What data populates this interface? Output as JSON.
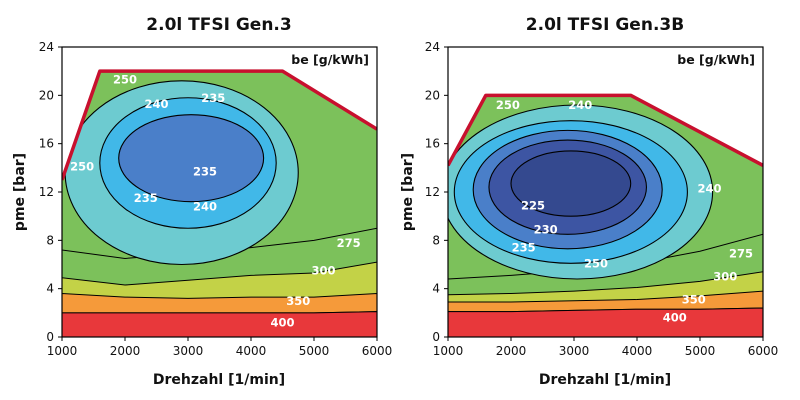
{
  "colors": {
    "band_400_plus": "#e8383b",
    "band_350_400": "#f26a3c",
    "band_300_350": "#f59a3a",
    "band_275_300": "#c3d247",
    "band_250_275": "#7cc15b",
    "band_240_250": "#6dcbd0",
    "band_235_240": "#41b8e8",
    "band_230_235": "#4a7fc9",
    "band_below_230": "#3d55a3",
    "full_load_line": "#c8102e",
    "contour_line": "#000000"
  },
  "chart_data": [
    {
      "type": "contour",
      "title": "2.0l TFSI Gen.3",
      "xlabel": "Drehzahl [1/min]",
      "ylabel": "pme [bar]",
      "unit_label": "be [g/kWh]",
      "xlim": [
        1000,
        6000
      ],
      "ylim": [
        0,
        24
      ],
      "xticks": [
        1000,
        2000,
        3000,
        4000,
        5000,
        6000
      ],
      "yticks": [
        0,
        4,
        8,
        12,
        16,
        20,
        24
      ],
      "grid": true,
      "full_load_curve": [
        [
          1000,
          13
        ],
        [
          1600,
          22
        ],
        [
          4500,
          22
        ],
        [
          6000,
          17.2
        ]
      ],
      "bands": [
        {
          "level": 400,
          "boundary": [
            [
              1000,
              2.0
            ],
            [
              2000,
              2.0
            ],
            [
              3000,
              2.0
            ],
            [
              4000,
              2.0
            ],
            [
              5000,
              2.0
            ],
            [
              6000,
              2.1
            ]
          ]
        },
        {
          "level": 350,
          "boundary": [
            [
              1000,
              3.6
            ],
            [
              2000,
              3.3
            ],
            [
              3000,
              3.2
            ],
            [
              4000,
              3.3
            ],
            [
              5000,
              3.3
            ],
            [
              6000,
              3.6
            ]
          ]
        },
        {
          "level": 300,
          "boundary": [
            [
              1000,
              4.9
            ],
            [
              2000,
              4.3
            ],
            [
              3000,
              4.7
            ],
            [
              4000,
              5.1
            ],
            [
              5000,
              5.3
            ],
            [
              6000,
              6.2
            ]
          ]
        },
        {
          "level": 275,
          "boundary": [
            [
              1000,
              7.2
            ],
            [
              2000,
              6.5
            ],
            [
              3000,
              6.9
            ],
            [
              4000,
              7.4
            ],
            [
              5000,
              8.0
            ],
            [
              6000,
              9.0
            ]
          ]
        }
      ],
      "islands": [
        {
          "level": 250,
          "center": [
            2900,
            13.6
          ],
          "rx": 1850,
          "ry": 7.6
        },
        {
          "level": 240,
          "center": [
            3000,
            14.4
          ],
          "rx": 1400,
          "ry": 5.4
        },
        {
          "level": 235,
          "center": [
            3050,
            14.8
          ],
          "rx": 1150,
          "ry": 3.6
        }
      ],
      "labels": [
        {
          "text": "250",
          "x": 2000,
          "y": 21.3
        },
        {
          "text": "240",
          "x": 2500,
          "y": 19.3
        },
        {
          "text": "235",
          "x": 3400,
          "y": 19.8
        },
        {
          "text": "250",
          "x": 1320,
          "y": 14.1
        },
        {
          "text": "235",
          "x": 3270,
          "y": 13.7
        },
        {
          "text": "235",
          "x": 2330,
          "y": 11.5
        },
        {
          "text": "240",
          "x": 3270,
          "y": 10.8
        },
        {
          "text": "275",
          "x": 5550,
          "y": 7.8
        },
        {
          "text": "300",
          "x": 5150,
          "y": 5.5
        },
        {
          "text": "350",
          "x": 4750,
          "y": 3.0
        },
        {
          "text": "400",
          "x": 4500,
          "y": 1.2
        }
      ]
    },
    {
      "type": "contour",
      "title": "2.0l TFSI Gen.3B",
      "xlabel": "Drehzahl [1/min]",
      "ylabel": "pme [bar]",
      "unit_label": "be [g/kWh]",
      "xlim": [
        1000,
        6000
      ],
      "ylim": [
        0,
        24
      ],
      "xticks": [
        1000,
        2000,
        3000,
        4000,
        5000,
        6000
      ],
      "yticks": [
        0,
        4,
        8,
        12,
        16,
        20,
        24
      ],
      "grid": true,
      "full_load_curve": [
        [
          1000,
          14.2
        ],
        [
          1600,
          20
        ],
        [
          3900,
          20
        ],
        [
          6000,
          14.2
        ]
      ],
      "bands": [
        {
          "level": 400,
          "boundary": [
            [
              1000,
              2.1
            ],
            [
              2000,
              2.1
            ],
            [
              3000,
              2.2
            ],
            [
              4000,
              2.3
            ],
            [
              5000,
              2.3
            ],
            [
              6000,
              2.4
            ]
          ]
        },
        {
          "level": 350,
          "boundary": [
            [
              1000,
              2.9
            ],
            [
              2000,
              2.9
            ],
            [
              3000,
              3.0
            ],
            [
              4000,
              3.1
            ],
            [
              5000,
              3.4
            ],
            [
              6000,
              3.8
            ]
          ]
        },
        {
          "level": 300,
          "boundary": [
            [
              1000,
              3.5
            ],
            [
              2000,
              3.6
            ],
            [
              3000,
              3.8
            ],
            [
              4000,
              4.1
            ],
            [
              5000,
              4.6
            ],
            [
              6000,
              5.4
            ]
          ]
        },
        {
          "level": 275,
          "boundary": [
            [
              1000,
              4.8
            ],
            [
              2000,
              5.1
            ],
            [
              3000,
              5.5
            ],
            [
              4000,
              6.1
            ],
            [
              5000,
              7.1
            ],
            [
              6000,
              8.5
            ]
          ]
        }
      ],
      "islands": [
        {
          "level": 250,
          "center": [
            3050,
            12.0
          ],
          "rx": 2150,
          "ry": 7.2
        },
        {
          "level": 240,
          "center": [
            2950,
            12.0
          ],
          "rx": 1850,
          "ry": 5.9
        },
        {
          "level": 235,
          "center": [
            2900,
            12.2
          ],
          "rx": 1500,
          "ry": 4.9
        },
        {
          "level": 230,
          "center": [
            2900,
            12.4
          ],
          "rx": 1250,
          "ry": 3.9
        },
        {
          "level": 225,
          "center": [
            2950,
            12.7
          ],
          "rx": 950,
          "ry": 2.7
        }
      ],
      "labels": [
        {
          "text": "250",
          "x": 1950,
          "y": 19.2
        },
        {
          "text": "240",
          "x": 3100,
          "y": 19.2
        },
        {
          "text": "240",
          "x": 5150,
          "y": 12.3
        },
        {
          "text": "225",
          "x": 2350,
          "y": 10.9
        },
        {
          "text": "230",
          "x": 2550,
          "y": 8.9
        },
        {
          "text": "235",
          "x": 2200,
          "y": 7.4
        },
        {
          "text": "250",
          "x": 3350,
          "y": 6.1
        },
        {
          "text": "275",
          "x": 5650,
          "y": 6.9
        },
        {
          "text": "300",
          "x": 5400,
          "y": 5.0
        },
        {
          "text": "350",
          "x": 4900,
          "y": 3.1
        },
        {
          "text": "400",
          "x": 4600,
          "y": 1.6
        }
      ]
    }
  ]
}
